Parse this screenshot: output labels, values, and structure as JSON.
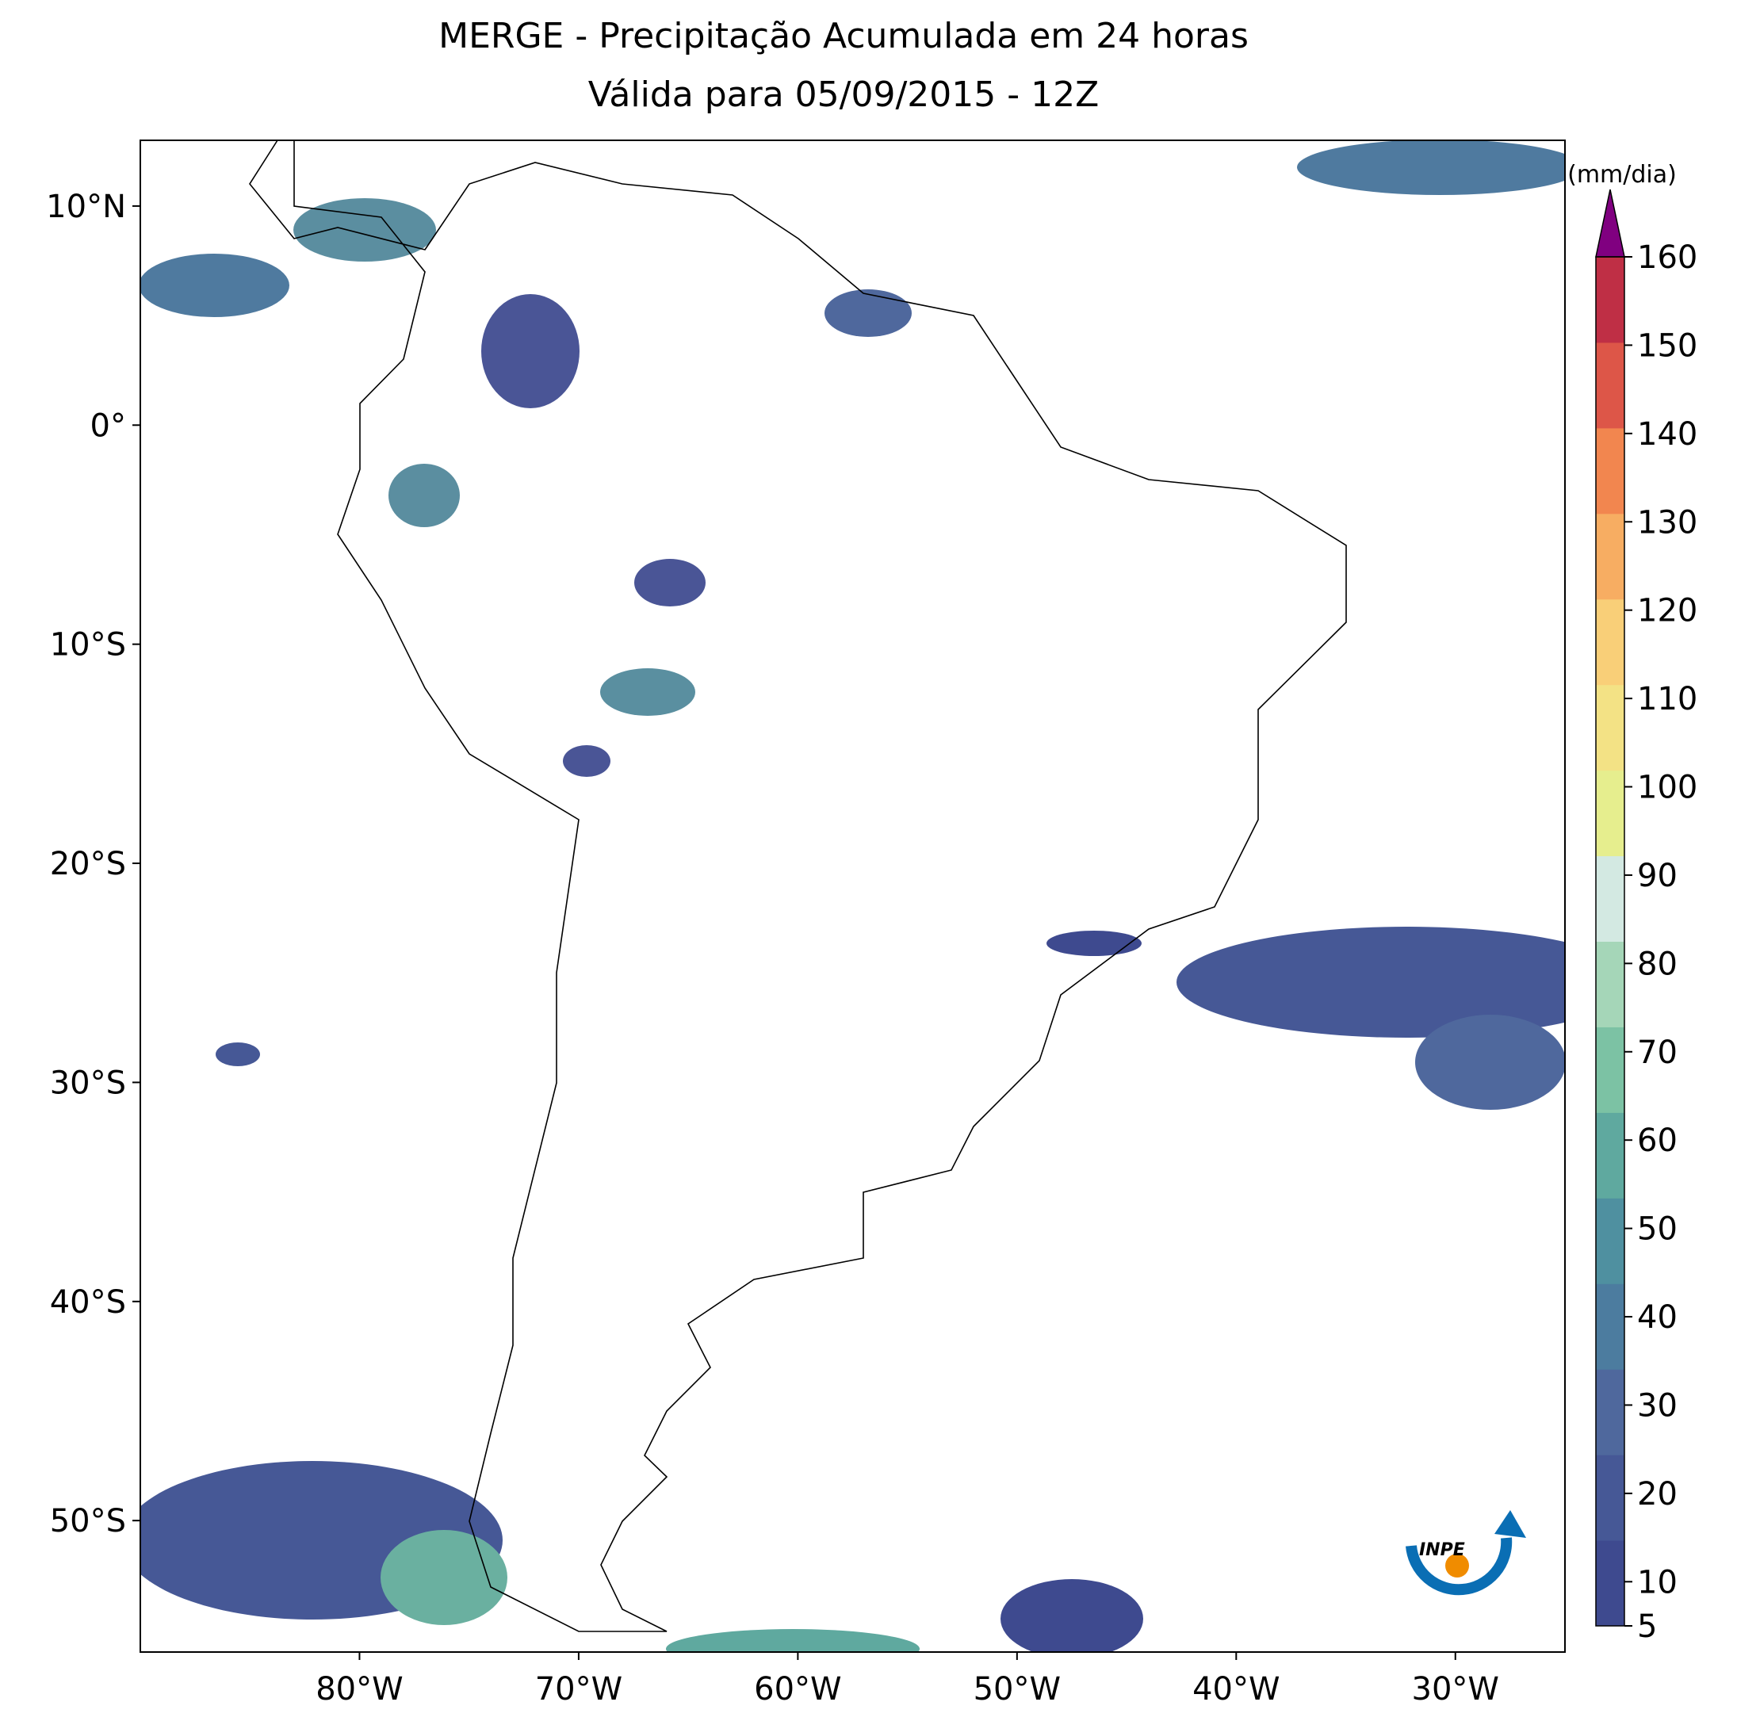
{
  "chart_data": {
    "type": "map",
    "title": "MERGE - Precipitação Acumulada em 24 horas",
    "subtitle": "Válida para 05/09/2015 - 12Z",
    "xlim": [
      -90,
      -25
    ],
    "ylim": [
      -56,
      13
    ],
    "xticks": [
      {
        "value": -80,
        "label": "80°W"
      },
      {
        "value": -70,
        "label": "70°W"
      },
      {
        "value": -60,
        "label": "60°W"
      },
      {
        "value": -50,
        "label": "50°W"
      },
      {
        "value": -40,
        "label": "40°W"
      },
      {
        "value": -30,
        "label": "30°W"
      }
    ],
    "yticks": [
      {
        "value": 10,
        "label": "10°N"
      },
      {
        "value": 0,
        "label": "0°"
      },
      {
        "value": -10,
        "label": "10°S"
      },
      {
        "value": -20,
        "label": "20°S"
      },
      {
        "value": -30,
        "label": "30°S"
      },
      {
        "value": -40,
        "label": "40°S"
      },
      {
        "value": -50,
        "label": "50°S"
      }
    ],
    "colorbar": {
      "label": "(mm/dia)",
      "lim": [
        5,
        160
      ],
      "ticks": [
        5,
        10,
        20,
        30,
        40,
        50,
        60,
        70,
        80,
        90,
        100,
        110,
        120,
        130,
        140,
        150,
        160
      ],
      "colors": [
        "#3e4a8f",
        "#465896",
        "#4f689d",
        "#4c7c9f",
        "#4f90a0",
        "#5fa99f",
        "#7cc2a4",
        "#a5d6b8",
        "#d3e9e2",
        "#e6ee8e",
        "#f3e285",
        "#f9cf78",
        "#f7ad62",
        "#f2864f",
        "#dd5648",
        "#bf2f45"
      ],
      "extend_color": "#800080"
    }
  },
  "logo_text": "INPE"
}
